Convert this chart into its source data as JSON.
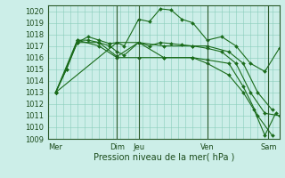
{
  "background_color": "#cceee8",
  "grid_color": "#88ccbb",
  "line_color": "#1a6b1a",
  "marker_color": "#1a6b1a",
  "title": "Pression niveau de la mer( hPa )",
  "ylim": [
    1009,
    1020.5
  ],
  "yticks": [
    1009,
    1010,
    1011,
    1012,
    1013,
    1014,
    1015,
    1016,
    1017,
    1018,
    1019,
    1020
  ],
  "xlim": [
    0,
    32
  ],
  "vlines": [
    9.5,
    12.5,
    22,
    30.5
  ],
  "xtick_positions": [
    1,
    9.5,
    12.5,
    22,
    30.5
  ],
  "xtick_labels": [
    "Mer",
    "Dim",
    "Jeu",
    "Ven",
    "Sam"
  ],
  "series": [
    {
      "x": [
        1,
        2.5,
        4,
        5.5,
        7,
        8.5,
        9.5,
        10.5,
        12.5,
        14,
        15.5,
        17,
        18.5,
        20,
        22,
        24,
        26,
        28,
        30,
        32
      ],
      "y": [
        1013,
        1015,
        1017.3,
        1017.8,
        1017.5,
        1017.2,
        1017.3,
        1017.0,
        1019.3,
        1019.1,
        1020.2,
        1020.1,
        1019.3,
        1019.0,
        1017.5,
        1017.8,
        1017.0,
        1015.5,
        1014.8,
        1016.8
      ]
    },
    {
      "x": [
        1,
        2.5,
        4,
        5.5,
        7,
        8.5,
        9.5,
        10.5,
        12.5,
        14,
        15.5,
        17,
        18.5,
        20,
        22,
        24,
        26,
        28,
        30,
        32
      ],
      "y": [
        1013,
        1015,
        1017.5,
        1017.5,
        1017.3,
        1017.0,
        1016.5,
        1016.2,
        1017.3,
        1017.0,
        1017.3,
        1017.2,
        1017.1,
        1017.0,
        1016.8,
        1016.5,
        1015.5,
        1013.0,
        1011.2,
        1011.0
      ]
    },
    {
      "x": [
        1,
        4,
        7,
        9.5,
        12.5,
        16,
        20,
        22,
        25,
        27,
        29,
        31
      ],
      "y": [
        1013,
        1017.3,
        1017.3,
        1016.1,
        1017.3,
        1017.0,
        1017.0,
        1017.0,
        1016.5,
        1015.5,
        1013.0,
        1011.5
      ]
    },
    {
      "x": [
        1,
        9.5,
        12.5,
        16,
        20,
        22,
        25,
        27,
        28.5,
        30,
        31.5
      ],
      "y": [
        1013,
        1017.3,
        1017.3,
        1016.0,
        1016.0,
        1015.5,
        1014.5,
        1013.0,
        1011.5,
        1009.3,
        1011.2
      ]
    },
    {
      "x": [
        1,
        4,
        7,
        9.5,
        12.5,
        16,
        20,
        22,
        25,
        27,
        29,
        31
      ],
      "y": [
        1013,
        1017.5,
        1017.0,
        1016.0,
        1016.0,
        1016.0,
        1016.0,
        1015.8,
        1015.5,
        1013.5,
        1011.0,
        1009.3
      ]
    }
  ]
}
